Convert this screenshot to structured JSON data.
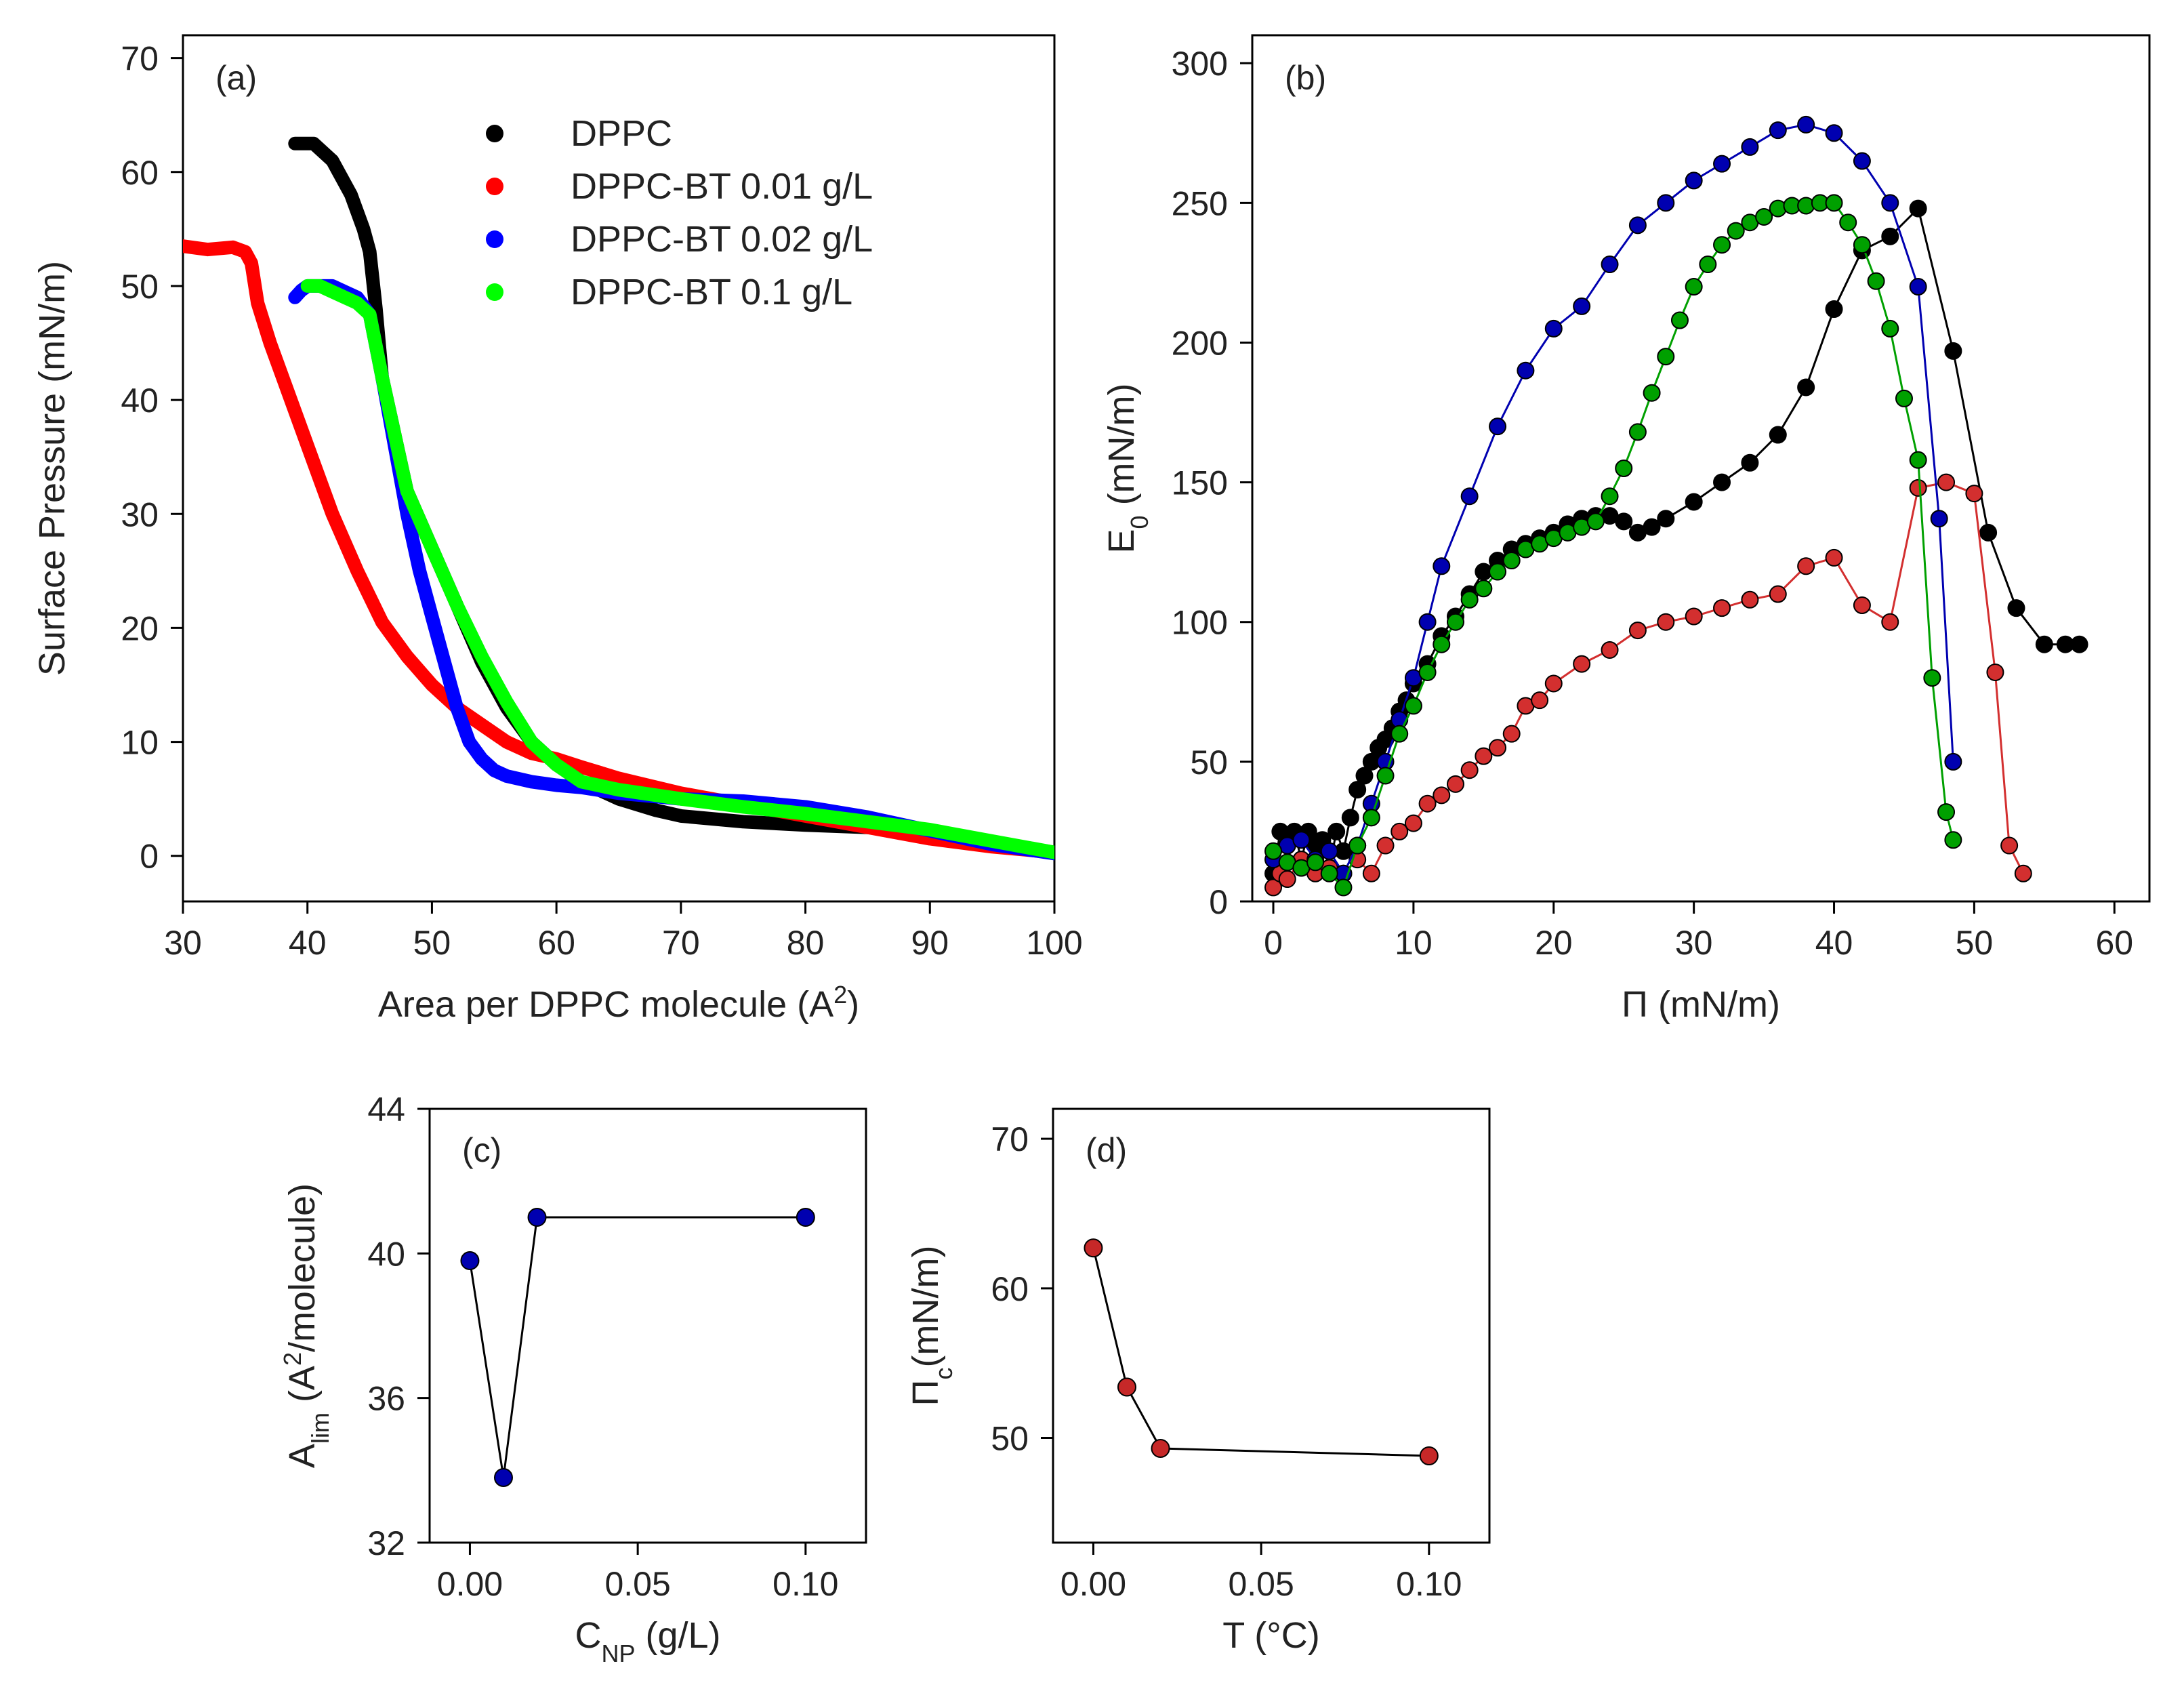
{
  "figure": {
    "background": "#ffffff",
    "axis_color": "#000000"
  },
  "chart_data": [
    {
      "id": "a",
      "type": "line",
      "panel_label": "(a)",
      "xlabel": "Area per DPPC molecule (A",
      "xlabel_sup": "2",
      "xlabel_tail": ")",
      "ylabel": "Surface Pressure (mN/m)",
      "xlim": [
        30,
        100
      ],
      "ylim": [
        -4,
        72
      ],
      "xticks": [
        30,
        40,
        50,
        60,
        70,
        80,
        90,
        100
      ],
      "yticks": [
        0,
        10,
        20,
        30,
        40,
        50,
        60,
        70
      ],
      "legend_position": "top-right",
      "series": [
        {
          "name": "DPPC",
          "color": "#000000",
          "x": [
            39.0,
            40.5,
            42,
            43.5,
            44.5,
            45,
            45.5,
            46,
            47,
            48,
            50,
            52,
            54,
            56,
            58,
            60,
            62,
            65,
            68,
            70,
            75,
            80,
            85,
            90,
            95,
            100
          ],
          "y": [
            62.5,
            62.5,
            61,
            58,
            55,
            53,
            48,
            42,
            37,
            32,
            27,
            22,
            17,
            13,
            10,
            8,
            6.5,
            5,
            4,
            3.5,
            3,
            2.7,
            2.5,
            2.0,
            1.2,
            0.3
          ]
        },
        {
          "name": "DPPC-BT 0.01 g/L",
          "color": "#ff0000",
          "x": [
            30,
            32,
            34,
            35,
            35.5,
            36,
            37,
            38,
            40,
            42,
            44,
            46,
            48,
            50,
            52,
            54,
            56,
            58,
            60,
            62,
            65,
            70,
            75,
            80,
            85,
            90,
            95,
            100
          ],
          "y": [
            53.5,
            53.2,
            53.4,
            53.0,
            52.0,
            48.5,
            45,
            42,
            36,
            30,
            25,
            20.5,
            17.5,
            15,
            13,
            11.5,
            10,
            9,
            8.5,
            7.8,
            6.8,
            5.5,
            4.5,
            3.5,
            2.5,
            1.5,
            0.8,
            0.3
          ]
        },
        {
          "name": "DPPC-BT 0.02 g/L",
          "color": "#0000ff",
          "x": [
            39,
            39.5,
            40,
            41,
            42,
            43,
            44,
            45,
            46,
            47,
            48,
            49,
            50,
            51,
            52,
            53,
            54,
            55,
            56,
            58,
            60,
            62,
            65,
            70,
            75,
            80,
            85,
            90,
            95,
            100
          ],
          "y": [
            49,
            49.6,
            50,
            50,
            50,
            49.5,
            49,
            47.5,
            42,
            36,
            30,
            25,
            21,
            17,
            13,
            10,
            8.5,
            7.5,
            7,
            6.5,
            6.2,
            6,
            5.5,
            5,
            4.8,
            4.3,
            3.4,
            2.2,
            1,
            0.2
          ]
        },
        {
          "name": "DPPC-BT 0.1 g/L",
          "color": "#00ff00",
          "x": [
            40,
            41,
            42,
            43,
            44,
            45,
            46,
            47,
            48,
            50,
            52,
            54,
            56,
            58,
            60,
            62,
            65,
            70,
            75,
            80,
            85,
            90,
            95,
            100
          ],
          "y": [
            50,
            50,
            49.5,
            49,
            48.5,
            47.5,
            42,
            37,
            32,
            27,
            22,
            17.5,
            13.5,
            10,
            8,
            6.5,
            5.8,
            5,
            4.3,
            3.7,
            3.0,
            2.3,
            1.3,
            0.3
          ]
        }
      ]
    },
    {
      "id": "b",
      "type": "line",
      "panel_label": "(b)",
      "xlabel": "Π (mN/m)",
      "ylabel": "E",
      "ylabel_sub": "0",
      "ylabel_tail": " (mN/m)",
      "xlim": [
        -1.5,
        62.5
      ],
      "ylim": [
        0,
        310
      ],
      "xticks": [
        0,
        10,
        20,
        30,
        40,
        50,
        60
      ],
      "yticks": [
        0,
        50,
        100,
        150,
        200,
        250,
        300
      ],
      "series": [
        {
          "name": "DPPC",
          "color": "#000000",
          "x": [
            0,
            0.5,
            1,
            1.5,
            2,
            2.5,
            3,
            3.5,
            4,
            4.5,
            5,
            5.5,
            6,
            6.5,
            7,
            7.5,
            8,
            8.5,
            9,
            9.5,
            10,
            11,
            12,
            13,
            14,
            15,
            16,
            17,
            18,
            19,
            20,
            21,
            22,
            23,
            24,
            25,
            26,
            27,
            28,
            30,
            32,
            34,
            36,
            38,
            40,
            42,
            44,
            46,
            48.5,
            51,
            53,
            55,
            56.5,
            57.5
          ],
          "y": [
            10,
            25,
            20,
            25,
            15,
            25,
            20,
            22,
            12,
            25,
            18,
            30,
            40,
            45,
            50,
            55,
            58,
            62,
            68,
            72,
            78,
            85,
            95,
            102,
            110,
            118,
            122,
            126,
            128,
            130,
            132,
            135,
            137,
            138,
            138,
            136,
            132,
            134,
            137,
            143,
            150,
            157,
            167,
            184,
            212,
            233,
            238,
            248,
            197,
            132,
            105,
            92,
            92,
            92
          ]
        },
        {
          "name": "DPPC-BT 0.01 g/L",
          "color": "#d32f2f",
          "x": [
            0,
            0.5,
            1,
            2,
            3,
            4,
            5,
            6,
            7,
            8,
            9,
            10,
            11,
            12,
            13,
            14,
            15,
            16,
            17,
            18,
            19,
            20,
            22,
            24,
            26,
            28,
            30,
            32,
            34,
            36,
            38,
            40,
            42,
            44,
            46,
            48,
            50,
            51.5,
            52.5,
            53.5
          ],
          "y": [
            5,
            10,
            8,
            15,
            10,
            12,
            10,
            15,
            10,
            20,
            25,
            28,
            35,
            38,
            42,
            47,
            52,
            55,
            60,
            70,
            72,
            78,
            85,
            90,
            97,
            100,
            102,
            105,
            108,
            110,
            120,
            123,
            106,
            100,
            148,
            150,
            146,
            82,
            20,
            10
          ]
        },
        {
          "name": "DPPC-BT 0.02 g/L",
          "color": "#0000b0",
          "x": [
            0,
            1,
            2,
            3,
            4,
            5,
            6,
            7,
            8,
            9,
            10,
            11,
            12,
            14,
            16,
            18,
            20,
            22,
            24,
            26,
            28,
            30,
            32,
            34,
            36,
            38,
            40,
            42,
            44,
            46,
            47.5,
            48.5
          ],
          "y": [
            15,
            20,
            22,
            15,
            18,
            10,
            20,
            35,
            50,
            65,
            80,
            100,
            120,
            145,
            170,
            190,
            205,
            213,
            228,
            242,
            250,
            258,
            264,
            270,
            276,
            278,
            275,
            265,
            250,
            220,
            137,
            50
          ]
        },
        {
          "name": "DPPC-BT 0.1 g/L",
          "color": "#00a000",
          "x": [
            0,
            1,
            2,
            3,
            4,
            5,
            6,
            7,
            8,
            9,
            10,
            11,
            12,
            13,
            14,
            15,
            16,
            17,
            18,
            19,
            20,
            21,
            22,
            23,
            24,
            25,
            26,
            27,
            28,
            29,
            30,
            31,
            32,
            33,
            34,
            35,
            36,
            37,
            38,
            39,
            40,
            41,
            42,
            43,
            44,
            45,
            46,
            47,
            48,
            48.5
          ],
          "y": [
            18,
            14,
            12,
            14,
            10,
            5,
            20,
            30,
            45,
            60,
            70,
            82,
            92,
            100,
            108,
            112,
            118,
            122,
            126,
            128,
            130,
            132,
            134,
            136,
            145,
            155,
            168,
            182,
            195,
            208,
            220,
            228,
            235,
            240,
            243,
            245,
            248,
            249,
            249,
            250,
            250,
            243,
            235,
            222,
            205,
            180,
            158,
            80,
            32,
            22
          ]
        }
      ]
    },
    {
      "id": "c",
      "type": "line",
      "panel_label": "(c)",
      "xlabel": "C",
      "xlabel_sub": "NP",
      "xlabel_tail": " (g/L)",
      "ylabel": "A",
      "ylabel_sub": "lim",
      "ylabel_mid": " (A",
      "ylabel_sup": "2",
      "ylabel_tail": "/molecule)",
      "xlim": [
        -0.012,
        0.118
      ],
      "ylim": [
        32,
        44
      ],
      "xticks": [
        0.0,
        0.05,
        0.1
      ],
      "xtick_labels": [
        "0.00",
        "0.05",
        "0.10"
      ],
      "yticks": [
        32,
        36,
        40,
        44
      ],
      "series": [
        {
          "name": "A_lim",
          "color": "#0000b0",
          "x": [
            0.0,
            0.01,
            0.02,
            0.1
          ],
          "y": [
            39.8,
            33.8,
            41.0,
            41.0
          ]
        }
      ]
    },
    {
      "id": "d",
      "type": "line",
      "panel_label": "(d)",
      "xlabel": "T (°C)",
      "ylabel": "Π",
      "ylabel_sub": "c",
      "ylabel_tail": "(mN/m)",
      "xlim": [
        -0.012,
        0.118
      ],
      "ylim": [
        43,
        72
      ],
      "xticks": [
        0.0,
        0.05,
        0.1
      ],
      "xtick_labels": [
        "0.00",
        "0.05",
        "0.10"
      ],
      "yticks": [
        50,
        60,
        70
      ],
      "series": [
        {
          "name": "Pi_c",
          "color": "#c62828",
          "x": [
            0.0,
            0.01,
            0.02,
            0.1
          ],
          "y": [
            62.7,
            53.4,
            49.3,
            48.8
          ]
        }
      ]
    }
  ]
}
